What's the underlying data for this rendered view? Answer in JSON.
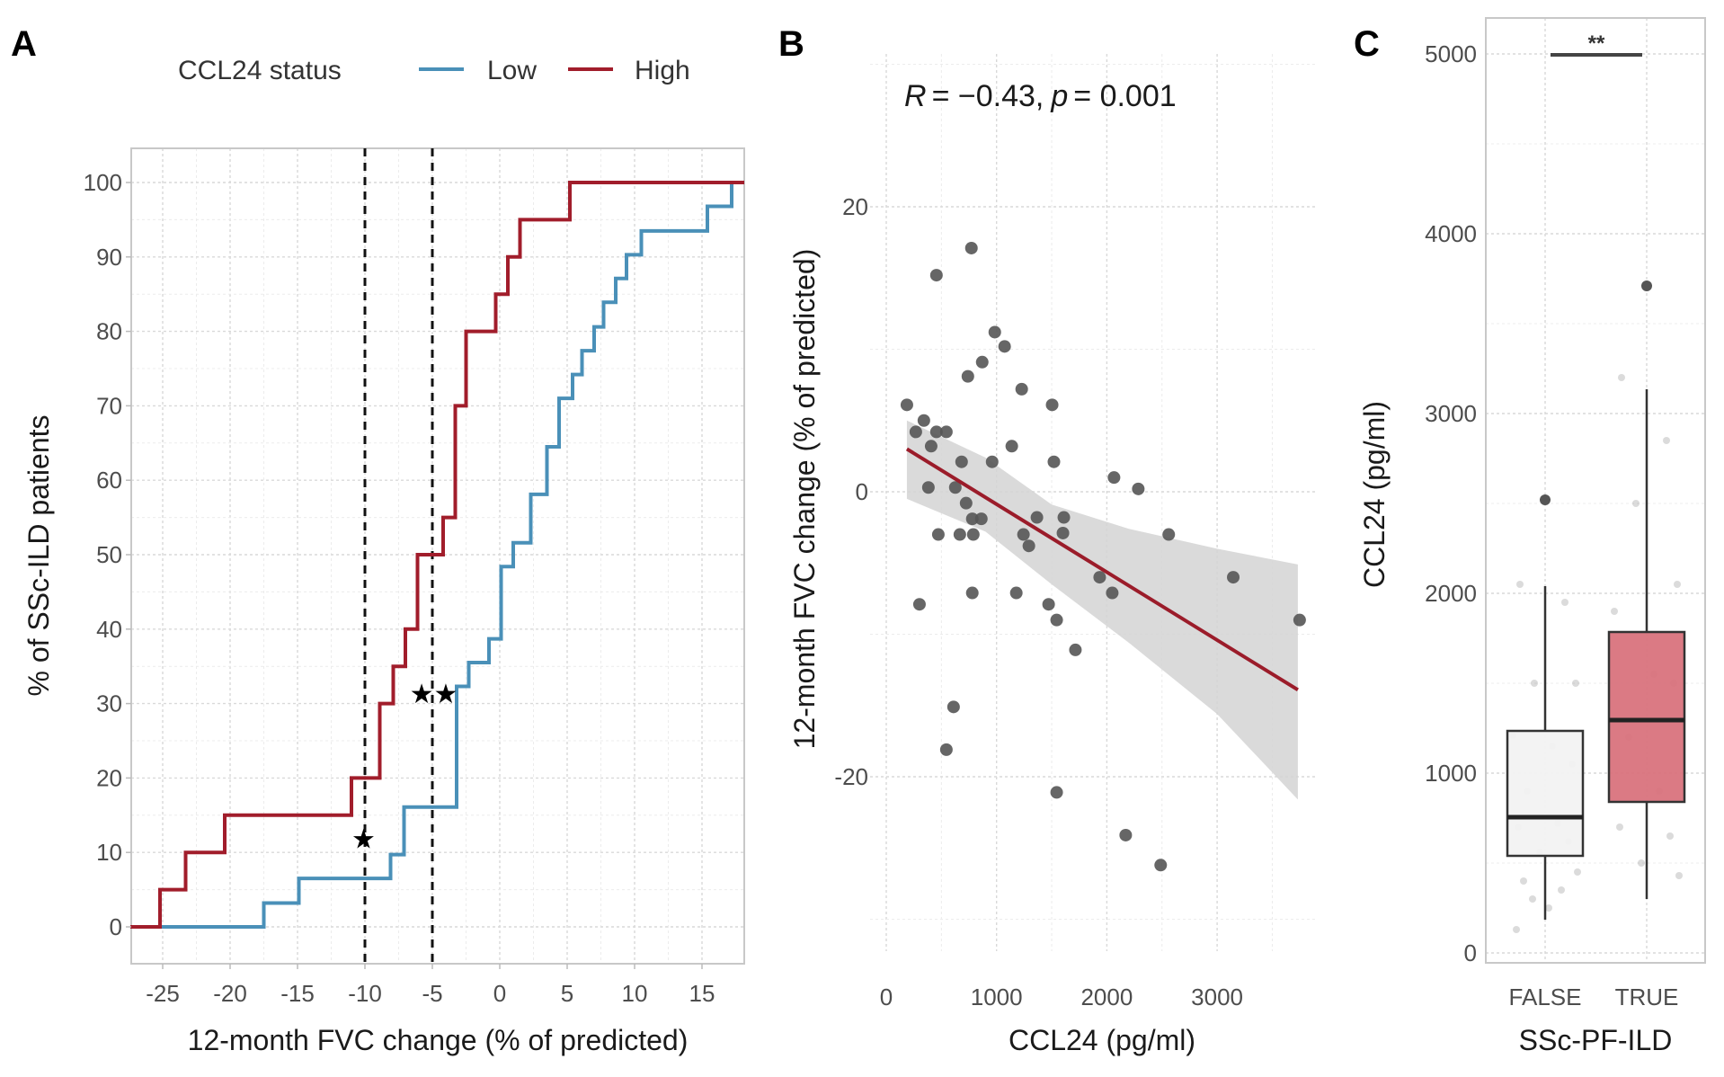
{
  "chart_data": [
    {
      "panel": "A",
      "type": "line",
      "subtype": "step-ecdf",
      "legend": {
        "title": "CCL24 status",
        "placement": "top",
        "entries": [
          {
            "label": "Low",
            "color": "#4a90b8"
          },
          {
            "label": "High",
            "color": "#a11d2b"
          }
        ]
      },
      "xlabel": "12-month FVC change (% of predicted)",
      "ylabel": "% of SSc-ILD patients",
      "xlim": [
        -27.4,
        18.3
      ],
      "ylim": [
        -5,
        105
      ],
      "xticks": [
        -25,
        -20,
        -15,
        -10,
        -5,
        0,
        5,
        10,
        15
      ],
      "yticks": [
        0,
        10,
        20,
        30,
        40,
        50,
        60,
        70,
        80,
        90,
        100
      ],
      "grid": true,
      "reference_lines": [
        {
          "x": -10,
          "style": "dashed",
          "annotation": "★"
        },
        {
          "x": -5,
          "style": "dashed",
          "annotation": "★★"
        }
      ],
      "annotation_positions": [
        {
          "label": "★",
          "x": -10.1,
          "y": 12
        },
        {
          "label": "★★",
          "x": -4.9,
          "y": 31.5
        }
      ],
      "series": [
        {
          "name": "Low",
          "steps": [
            [
              -27.4,
              0
            ],
            [
              -17.5,
              3.2
            ],
            [
              -14.9,
              6.5
            ],
            [
              -8.1,
              9.7
            ],
            [
              -7.1,
              16.1
            ],
            [
              -3.2,
              32.3
            ],
            [
              -2.3,
              35.5
            ],
            [
              -0.8,
              38.7
            ],
            [
              0.1,
              48.4
            ],
            [
              1.0,
              51.6
            ],
            [
              2.3,
              58.1
            ],
            [
              3.5,
              64.5
            ],
            [
              4.4,
              71.0
            ],
            [
              5.4,
              74.2
            ],
            [
              6.1,
              77.4
            ],
            [
              7.0,
              80.6
            ],
            [
              7.7,
              83.9
            ],
            [
              8.6,
              87.1
            ],
            [
              9.4,
              90.3
            ],
            [
              10.5,
              93.5
            ],
            [
              15.4,
              96.8
            ],
            [
              17.2,
              100
            ]
          ]
        },
        {
          "name": "High",
          "steps": [
            [
              -27.4,
              0
            ],
            [
              -25.2,
              5
            ],
            [
              -23.3,
              10
            ],
            [
              -20.4,
              15
            ],
            [
              -11.0,
              20
            ],
            [
              -8.9,
              30
            ],
            [
              -7.9,
              35
            ],
            [
              -7.0,
              40
            ],
            [
              -6.1,
              50
            ],
            [
              -4.2,
              55
            ],
            [
              -3.3,
              70
            ],
            [
              -2.5,
              80
            ],
            [
              -0.3,
              85
            ],
            [
              0.6,
              90
            ],
            [
              1.5,
              95
            ],
            [
              5.2,
              100
            ]
          ]
        }
      ]
    },
    {
      "panel": "B",
      "type": "scatter",
      "title": "R = −0.43, p = 0.001",
      "stat": {
        "R_label": "R",
        "R_value": "= −0.43,",
        "p_label": "p",
        "p_value": "= 0.001"
      },
      "xlabel": "CCL24 (pg/ml)",
      "ylabel": "12-month FVC change (% of predicted)",
      "xlim": [
        -150,
        3900
      ],
      "ylim": [
        -31,
        34
      ],
      "xticks": [
        0,
        1000,
        2000,
        3000
      ],
      "yticks": [
        -20,
        0,
        20
      ],
      "grid": true,
      "point_color": "#555555",
      "fit": {
        "color": "#9b1c2a",
        "x": [
          187,
          3732
        ],
        "y": [
          3.0,
          -13.9
        ]
      },
      "confidence_band": {
        "color": "#d3d3d3",
        "x": [
          187,
          900,
          1500,
          2200,
          3000,
          3732
        ],
        "lower": [
          -0.5,
          -2.8,
          -6.5,
          -10.6,
          -15.6,
          -21.6
        ],
        "upper": [
          5.0,
          2.4,
          -0.9,
          -2.6,
          -4.0,
          -5.1
        ]
      },
      "points": [
        [
          772,
          17.1
        ],
        [
          455,
          15.2
        ],
        [
          984,
          11.2
        ],
        [
          1073,
          10.2
        ],
        [
          870,
          9.1
        ],
        [
          740,
          8.1
        ],
        [
          1228,
          7.2
        ],
        [
          1504,
          6.1
        ],
        [
          187,
          6.1
        ],
        [
          341,
          5.0
        ],
        [
          268,
          4.2
        ],
        [
          455,
          4.2
        ],
        [
          545,
          4.2
        ],
        [
          407,
          3.2
        ],
        [
          1138,
          3.2
        ],
        [
          683,
          2.1
        ],
        [
          960,
          2.1
        ],
        [
          1520,
          2.1
        ],
        [
          2065,
          1.0
        ],
        [
          2285,
          0.2
        ],
        [
          382,
          0.3
        ],
        [
          626,
          0.3
        ],
        [
          724,
          -0.8
        ],
        [
          780,
          -1.9
        ],
        [
          862,
          -1.9
        ],
        [
          1366,
          -1.8
        ],
        [
          1610,
          -1.8
        ],
        [
          472,
          -3.0
        ],
        [
          667,
          -3.0
        ],
        [
          789,
          -3.0
        ],
        [
          1244,
          -3.0
        ],
        [
          1602,
          -2.9
        ],
        [
          2561,
          -3.0
        ],
        [
          1293,
          -3.8
        ],
        [
          301,
          -7.9
        ],
        [
          780,
          -7.1
        ],
        [
          1179,
          -7.1
        ],
        [
          1472,
          -7.9
        ],
        [
          1545,
          -9.0
        ],
        [
          1715,
          -11.1
        ],
        [
          1935,
          -6.0
        ],
        [
          2049,
          -7.1
        ],
        [
          3146,
          -6.0
        ],
        [
          3748,
          -9.0
        ],
        [
          610,
          -15.1
        ],
        [
          545,
          -18.1
        ],
        [
          1545,
          -21.1
        ],
        [
          2171,
          -24.1
        ],
        [
          2488,
          -26.2
        ]
      ]
    },
    {
      "panel": "C",
      "type": "box",
      "xlabel": "SSc-PF-ILD",
      "ylabel": "CCL24 (pg/ml)",
      "categories": [
        "FALSE",
        "TRUE"
      ],
      "ylim": [
        -60,
        5250
      ],
      "yticks": [
        0,
        1000,
        2000,
        3000,
        4000,
        5000
      ],
      "grid": true,
      "boxes": [
        {
          "category": "FALSE",
          "fill": "#f2f2f2",
          "whisker_low": 185,
          "q1": 540,
          "median": 755,
          "q3": 1235,
          "whisker_high": 2040,
          "outliers": [
            2520
          ]
        },
        {
          "category": "TRUE",
          "fill": "#d9737d",
          "whisker_low": 300,
          "q1": 840,
          "median": 1295,
          "q3": 1785,
          "whisker_high": 3135,
          "outliers": [
            3710
          ]
        }
      ],
      "jitter_points": {
        "FALSE": [
          2050,
          1950,
          1500,
          1500,
          1210,
          1150,
          1050,
          900,
          720,
          700,
          620,
          560,
          450,
          400,
          350,
          300,
          250,
          130
        ],
        "TRUE": [
          3200,
          2850,
          2500,
          2050,
          1900,
          1550,
          1500,
          1200,
          900,
          700,
          650,
          500,
          430
        ]
      },
      "significance": {
        "label": "**",
        "between": [
          "FALSE",
          "TRUE"
        ],
        "y": 5000
      }
    }
  ],
  "panels": {
    "A": {
      "letter": "A"
    },
    "B": {
      "letter": "B"
    },
    "C": {
      "letter": "C"
    }
  }
}
